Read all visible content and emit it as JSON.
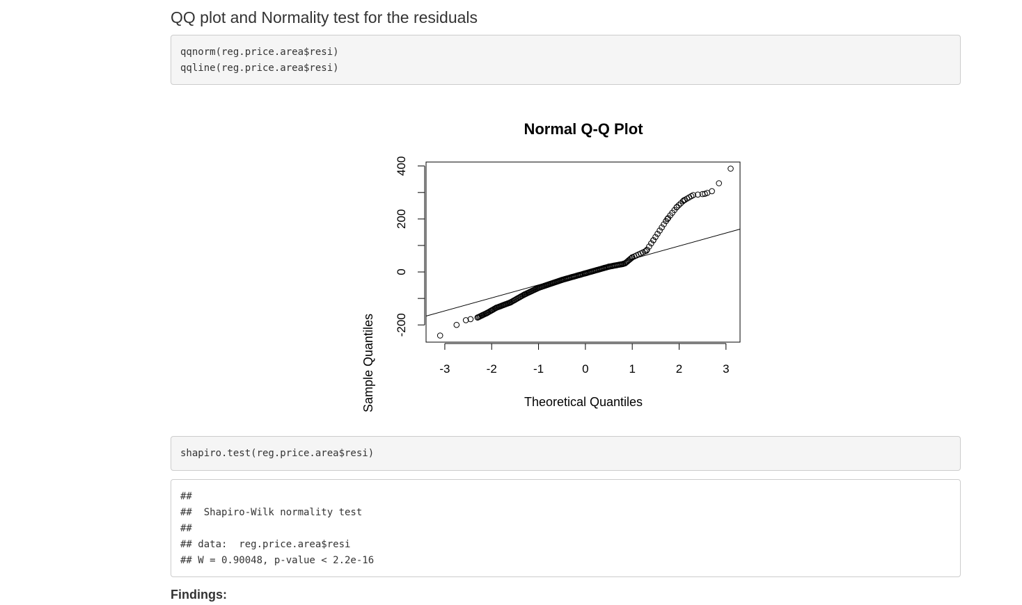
{
  "section": {
    "title": "QQ plot and Normality test for the residuals"
  },
  "code_block_1": {
    "lines": [
      "qqnorm(reg.price.area$resi)",
      "qqline(reg.price.area$resi)"
    ]
  },
  "chart_data": {
    "type": "scatter",
    "title": "Normal Q-Q Plot",
    "xlabel": "Theoretical Quantiles",
    "ylabel": "Sample Quantiles",
    "xlim": [
      -3.4,
      3.3
    ],
    "ylim": [
      -265,
      415
    ],
    "x_ticks": [
      -3,
      -2,
      -1,
      0,
      1,
      2,
      3
    ],
    "x_tick_labels": [
      "-3",
      "-2",
      "-1",
      "0",
      "1",
      "2",
      "3"
    ],
    "y_ticks": [
      -200,
      0,
      200,
      400
    ],
    "y_tick_labels": [
      "-200",
      "0",
      "200",
      "400"
    ],
    "reference_line": {
      "intercept": 0,
      "slope": 49
    },
    "anchors": [
      [
        -3.1,
        -240
      ],
      [
        -2.75,
        -200
      ],
      [
        -2.55,
        -182
      ],
      [
        -2.3,
        -172
      ],
      [
        -2.1,
        -155
      ],
      [
        -1.9,
        -135
      ],
      [
        -1.6,
        -115
      ],
      [
        -1.3,
        -85
      ],
      [
        -1.0,
        -60
      ],
      [
        -0.5,
        -30
      ],
      [
        0,
        -5
      ],
      [
        0.5,
        20
      ],
      [
        0.8,
        30
      ],
      [
        0.85,
        33
      ],
      [
        1.0,
        55
      ],
      [
        1.3,
        80
      ],
      [
        1.45,
        120
      ],
      [
        1.75,
        200
      ],
      [
        1.95,
        245
      ],
      [
        2.1,
        270
      ],
      [
        2.3,
        290
      ],
      [
        2.55,
        295
      ],
      [
        2.7,
        305
      ],
      [
        2.85,
        335
      ],
      [
        3.1,
        390
      ]
    ],
    "grid": false,
    "legend": "none"
  },
  "code_block_2": {
    "lines": [
      "shapiro.test(reg.price.area$resi)"
    ]
  },
  "output_block": {
    "lines": [
      "##",
      "##  Shapiro-Wilk normality test",
      "##",
      "## data:  reg.price.area$resi",
      "## W = 0.90048, p-value < 2.2e-16"
    ]
  },
  "findings": {
    "label": "Findings:"
  }
}
